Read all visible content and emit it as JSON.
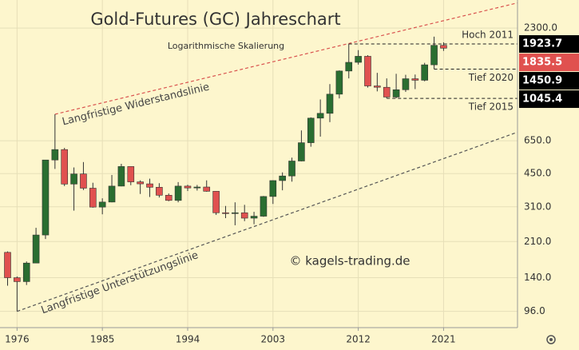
{
  "chart_data": {
    "type": "candlestick",
    "title": "Gold-Futures (GC) Jahreschart",
    "subtitle": "Logarithmische Skalierung",
    "watermark": "© kagels-trading.de",
    "log_scale": true,
    "grid": true,
    "up_color": "#2a6e31",
    "down_color": "#e0514f",
    "xlim": [
      1974.2,
      2028.8
    ],
    "xticks": [
      1976,
      1985,
      1994,
      2003,
      2012,
      2021
    ],
    "ylim": [
      80,
      3150
    ],
    "yticks": [
      {
        "value": 96,
        "label": "96.0"
      },
      {
        "value": 140,
        "label": "140.0"
      },
      {
        "value": 210,
        "label": "210.0"
      },
      {
        "value": 310,
        "label": "310.0"
      },
      {
        "value": 450,
        "label": "450.0"
      },
      {
        "value": 650,
        "label": "650.0"
      },
      {
        "value": 2300,
        "label": "2300.0"
      }
    ],
    "candles": {
      "x": [
        1975,
        1976,
        1977,
        1978,
        1979,
        1980,
        1981,
        1982,
        1983,
        1984,
        1985,
        1986,
        1987,
        1988,
        1989,
        1990,
        1991,
        1992,
        1993,
        1994,
        1995,
        1996,
        1997,
        1998,
        1999,
        2000,
        2001,
        2002,
        2003,
        2004,
        2005,
        2006,
        2007,
        2008,
        2009,
        2010,
        2011,
        2012,
        2013,
        2014,
        2015,
        2016,
        2017,
        2018,
        2019,
        2020,
        2021
      ],
      "open": [
        186,
        140,
        134,
        165,
        226,
        524,
        589,
        400,
        448,
        382,
        309,
        327,
        391,
        487,
        410,
        401,
        386,
        353,
        333,
        391,
        383,
        387,
        369,
        290,
        288,
        290,
        273,
        279,
        348,
        416,
        438,
        518,
        636,
        838,
        884,
        1096,
        1421,
        1566,
        1676,
        1202,
        1184,
        1061,
        1152,
        1303,
        1281,
        1523,
        1895
      ],
      "high": [
        188,
        142,
        168,
        245,
        524,
        875,
        600,
        482,
        512,
        406,
        341,
        443,
        502,
        485,
        417,
        425,
        404,
        360,
        409,
        397,
        396,
        417,
        367,
        313,
        326,
        317,
        293,
        350,
        417,
        456,
        538,
        730,
        845,
        1033,
        1227,
        1431,
        1923.7,
        1796,
        1697,
        1392,
        1308,
        1377,
        1362,
        1366,
        1557,
        2089,
        1960
      ],
      "low": [
        128,
        96,
        129,
        165,
        216,
        474,
        391,
        297,
        374,
        307,
        285,
        326,
        390,
        395,
        358,
        346,
        344,
        330,
        326,
        370,
        372,
        367,
        283,
        273,
        252,
        264,
        255,
        277,
        320,
        373,
        411,
        516,
        608,
        681,
        801,
        1045,
        1308,
        1527,
        1180,
        1131,
        1045.4,
        1046,
        1124,
        1160,
        1266,
        1450.9,
        1780
      ],
      "close": [
        140,
        134,
        165,
        226,
        524,
        589,
        400,
        448,
        382,
        309,
        327,
        391,
        487,
        410,
        401,
        386,
        353,
        333,
        391,
        383,
        387,
        369,
        290,
        288,
        290,
        273,
        279,
        348,
        416,
        438,
        518,
        636,
        838,
        884,
        1096,
        1421,
        1566,
        1676,
        1202,
        1184,
        1061,
        1152,
        1303,
        1281,
        1523,
        1895,
        1835.5
      ]
    },
    "level_lines": [
      {
        "label": "Hoch 2011",
        "value": 1923.7,
        "from": 2011
      },
      {
        "label": "Tief 2020",
        "value": 1450.9,
        "from": 2020
      },
      {
        "label": "Tief 2015",
        "value": 1045.4,
        "from": 2015
      }
    ],
    "price_markers": [
      {
        "value": 1923.7,
        "color": "#000000"
      },
      {
        "value": 1835.5,
        "color": "#e0514f"
      },
      {
        "value": 1450.9,
        "color": "#000000"
      },
      {
        "value": 1045.4,
        "color": "#000000"
      }
    ],
    "trendlines": [
      {
        "label": "Langfristige Widerstandslinie",
        "color": "#d9534f",
        "points": [
          [
            1980,
            875
          ],
          [
            2028.8,
            3050
          ]
        ]
      },
      {
        "label": "Langfristige Unterstützungslinie",
        "color": "#555555",
        "points": [
          [
            1976,
            96
          ],
          [
            2028.8,
            716
          ]
        ]
      }
    ]
  }
}
